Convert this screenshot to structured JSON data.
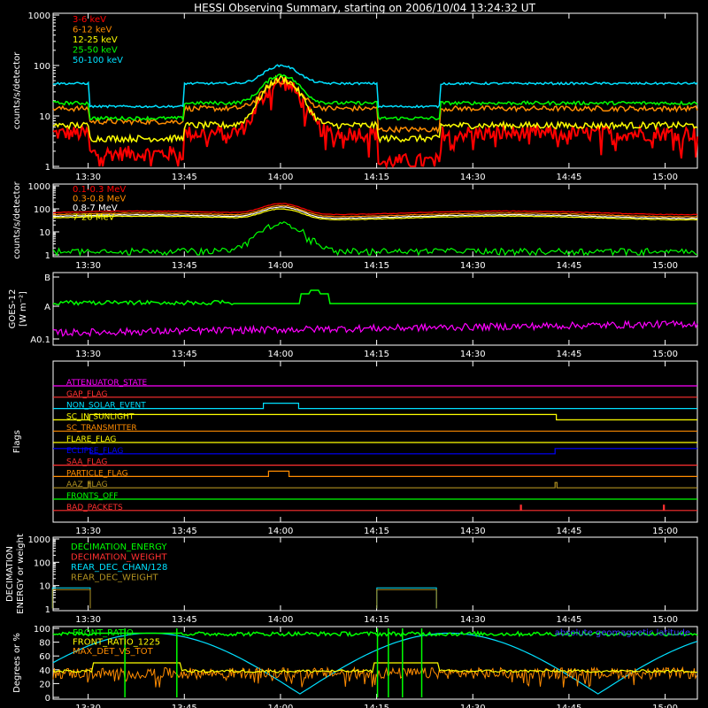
{
  "title": "HESSI Observing Summary, starting on 2006/10/04 13:24:32 UT",
  "time_ticks": [
    "13:30",
    "13:45",
    "14:00",
    "14:15",
    "14:30",
    "14:45",
    "15:00"
  ],
  "chart_data": [
    {
      "type": "line",
      "ylabel": "counts/s/detector",
      "ylog": true,
      "ylim": [
        1,
        1000
      ],
      "yticks": [
        "1",
        "10",
        "100",
        "1000"
      ],
      "series": [
        {
          "name": "3-6 keV",
          "color": "#ff0000",
          "base": 4.5,
          "peak": 45,
          "noise": 0.35,
          "lowRegion": 0.4
        },
        {
          "name": "6-12 keV",
          "color": "#ff8c00",
          "base": 14,
          "peak": 48,
          "noise": 0.12,
          "lowRegion": 0.55
        },
        {
          "name": "12-25 keV",
          "color": "#ffff00",
          "base": 6.5,
          "peak": 55,
          "noise": 0.15,
          "lowRegion": 0.55
        },
        {
          "name": "25-50 keV",
          "color": "#00ff00",
          "base": 18,
          "peak": 65,
          "noise": 0.08,
          "lowRegion": 0.5
        },
        {
          "name": "50-100 keV",
          "color": "#00e0ff",
          "base": 44,
          "peak": 100,
          "noise": 0.05,
          "lowRegion": 0.35
        }
      ]
    },
    {
      "type": "line",
      "ylabel": "counts/s/detector",
      "ylog": true,
      "ylim": [
        1,
        1000
      ],
      "yticks": [
        "1",
        "10",
        "100",
        "1000"
      ],
      "series": [
        {
          "name": "0.1-0.3 MeV",
          "color": "#ff0000",
          "base": 80,
          "peak": 170,
          "noise": 0.03
        },
        {
          "name": "0.3-0.8 MeV",
          "color": "#ff8c00",
          "base": 65,
          "peak": 140,
          "noise": 0.03
        },
        {
          "name": "0.8-7 MeV",
          "color": "#ffffff",
          "base": 55,
          "peak": 120,
          "noise": 0.03
        },
        {
          "name": "7-20 MeV",
          "color": "#ffff00",
          "base": 48,
          "peak": 100,
          "noise": 0.03
        },
        {
          "name": "",
          "color": "#00ff00",
          "base": 1.5,
          "peak": 22,
          "noise": 0.25
        }
      ]
    },
    {
      "type": "line",
      "ylabel": "GOES-12 [W m⁻²]",
      "yticks": [
        "A0.1",
        "A",
        "B"
      ],
      "series": [
        {
          "name": "",
          "color": "#00ff00",
          "level": 0.78
        },
        {
          "name": "",
          "color": "#ff00ff",
          "level": 0.2
        }
      ]
    },
    {
      "type": "line",
      "ylabel": "Flags",
      "flags": [
        {
          "name": "ATTENUATOR_STATE",
          "color": "#ff00ff"
        },
        {
          "name": "GAP_FLAG",
          "color": "#ff3030"
        },
        {
          "name": "NON_SOLAR_EVENT",
          "color": "#00e0ff"
        },
        {
          "name": "SC_IN_SUNLIGHT",
          "color": "#ffff00"
        },
        {
          "name": "SC_TRANSMITTER",
          "color": "#ff8c00"
        },
        {
          "name": "FLARE_FLAG",
          "color": "#ffff00"
        },
        {
          "name": "ECLIPSE_FLAG",
          "color": "#0000ff"
        },
        {
          "name": "SAA_FLAG",
          "color": "#ff3030"
        },
        {
          "name": "PARTICLE_FLAG",
          "color": "#ff8c00"
        },
        {
          "name": "AAZ_FLAG",
          "color": "#b09020"
        },
        {
          "name": "FRONTS_OFF",
          "color": "#00ff00"
        },
        {
          "name": "BAD_PACKETS",
          "color": "#ff3030"
        }
      ]
    },
    {
      "type": "line",
      "ylabel": "DECIMATION ENERGY or weight",
      "ylog": true,
      "ylim": [
        1,
        1000
      ],
      "yticks": [
        "1",
        "10",
        "100",
        "1000"
      ],
      "series": [
        {
          "name": "DECIMATION_ENERGY",
          "color": "#00ff00"
        },
        {
          "name": "DECIMATION_WEIGHT",
          "color": "#ff3030"
        },
        {
          "name": "REAR_DEC_CHAN/128",
          "color": "#00e0ff"
        },
        {
          "name": "REAR_DEC_WEIGHT",
          "color": "#b09020"
        }
      ]
    },
    {
      "type": "line",
      "ylabel": "Degrees or %",
      "ylim": [
        0,
        100
      ],
      "yticks": [
        "0",
        "20",
        "40",
        "60",
        "80",
        "100"
      ],
      "annotation": "absolute geomagnetic latitude",
      "series": [
        {
          "name": "FRONT_RATIO",
          "color": "#00ff00"
        },
        {
          "name": "FRONT_RATIO_1225",
          "color": "#ffff00"
        },
        {
          "name": "MAX_DET_VS_TOT",
          "color": "#ff8c00"
        }
      ]
    }
  ]
}
